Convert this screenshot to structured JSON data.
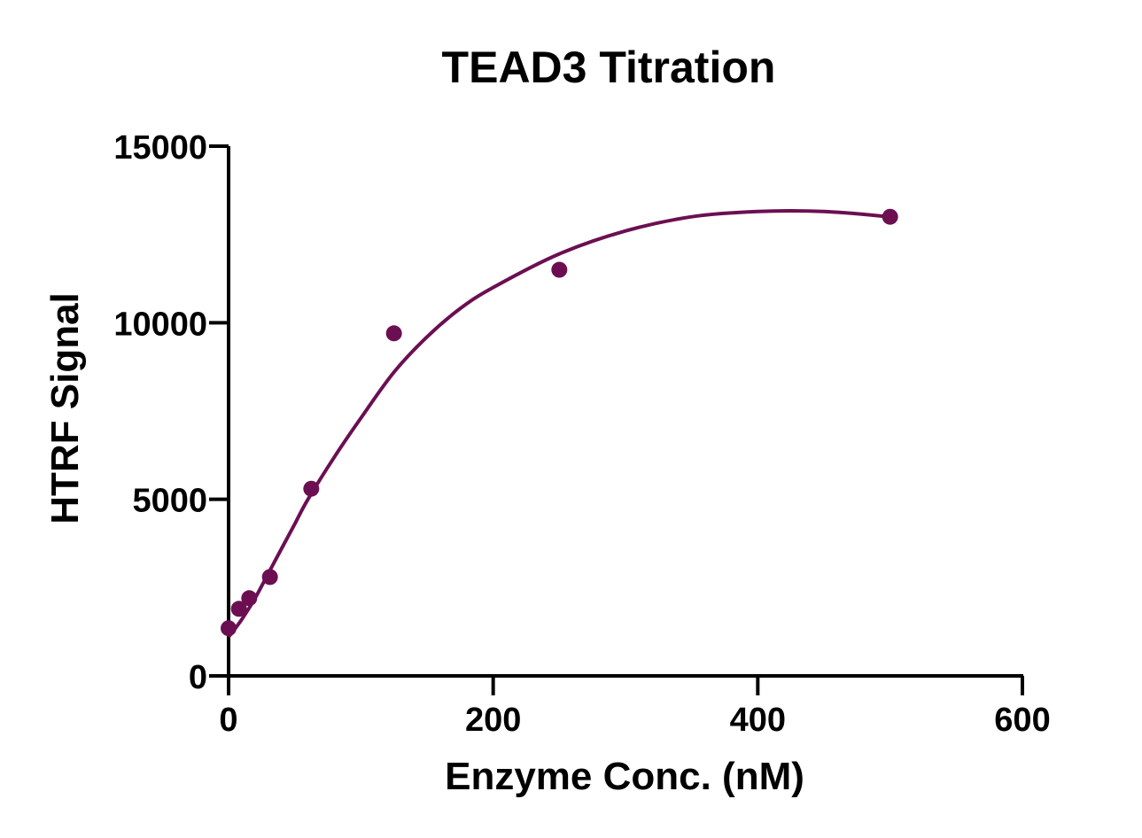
{
  "chart_data": {
    "type": "scatter",
    "title": "TEAD3 Titration",
    "xlabel": "Enzyme Conc. (nM)",
    "ylabel": "HTRF Signal",
    "xlim": [
      0,
      600
    ],
    "ylim": [
      0,
      15000
    ],
    "xticks": [
      0,
      200,
      400,
      600
    ],
    "xtick_labels": [
      "0",
      "200",
      "400",
      "600"
    ],
    "yticks": [
      0,
      5000,
      10000,
      15000
    ],
    "ytick_labels": [
      "0",
      "5000",
      "10000",
      "15000"
    ],
    "grid": false,
    "legend": "none",
    "series": [
      {
        "color": "#6b0f52",
        "points": [
          {
            "x": 0,
            "y": 1350
          },
          {
            "x": 7.8,
            "y": 1900
          },
          {
            "x": 15.6,
            "y": 2200
          },
          {
            "x": 31.25,
            "y": 2800
          },
          {
            "x": 62.5,
            "y": 5300
          },
          {
            "x": 125,
            "y": 9700
          },
          {
            "x": 250,
            "y": 11500
          },
          {
            "x": 500,
            "y": 13000
          }
        ],
        "fit_curve": {
          "x": [
            0,
            10,
            20,
            30,
            40,
            50,
            60,
            80,
            100,
            125,
            150,
            175,
            200,
            250,
            300,
            350,
            400,
            450,
            500
          ],
          "y": [
            1100,
            1600,
            2200,
            2900,
            3600,
            4300,
            5000,
            6200,
            7300,
            8600,
            9600,
            10400,
            11000,
            11950,
            12600,
            13000,
            13150,
            13150,
            13000
          ]
        }
      }
    ]
  }
}
